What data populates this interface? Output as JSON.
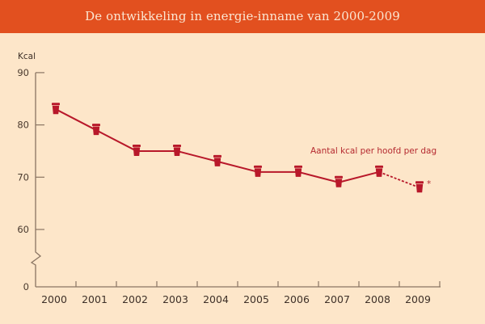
{
  "header": {
    "title": "De ontwikkeling in energie-inname van 2000-2009"
  },
  "colors": {
    "header_bg": "#e2501f",
    "background": "#fde6c9",
    "series": "#b8182a",
    "axis": "#8a7563"
  },
  "chart_data": {
    "type": "line",
    "title": "De ontwikkeling in energie-inname van 2000-2009",
    "xlabel": "",
    "ylabel": "Kcal",
    "categories": [
      "2000",
      "2001",
      "2002",
      "2003",
      "2004",
      "2005",
      "2006",
      "2007",
      "2008",
      "2009"
    ],
    "series": [
      {
        "name": "Aantal kcal per hoofd per dag",
        "values": [
          83,
          79,
          75,
          75,
          73,
          71,
          71,
          69,
          71,
          68
        ],
        "marker": "cup-icon",
        "dashed_last_segment": true,
        "last_point_annotation": "*"
      }
    ],
    "yticks": [
      0,
      60,
      70,
      80,
      90
    ],
    "ytick_labels": [
      "0",
      "60",
      "70",
      "80",
      "90"
    ],
    "ylim": [
      0,
      90
    ],
    "axis_break": "between 0 and 60",
    "grid": false,
    "legend": "inline label right of series, above the 2007-2008 segment"
  }
}
